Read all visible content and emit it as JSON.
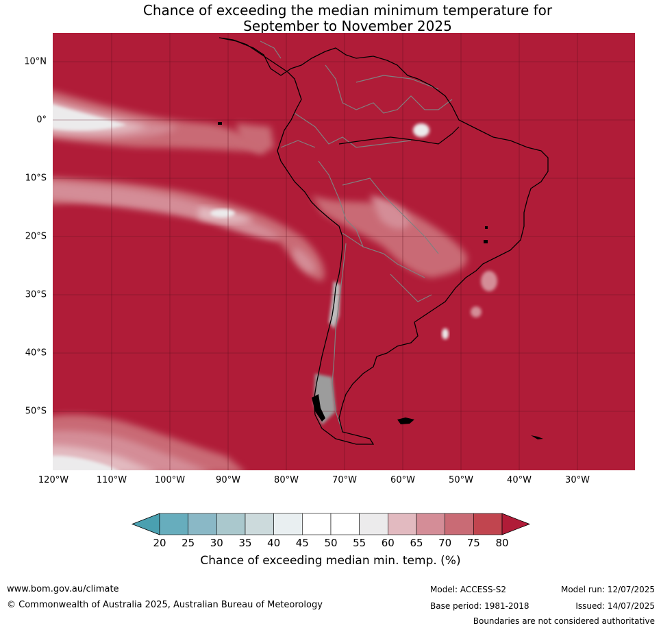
{
  "title": {
    "line1": "Chance of exceeding the median minimum temperature for",
    "line2": "September to November 2025"
  },
  "map": {
    "region": "South America",
    "base_color": "#b01c38",
    "land_outline_color": "#000000",
    "border_color": "#808080",
    "latitude_labels": [
      "10°N",
      "0°",
      "10°S",
      "20°S",
      "30°S",
      "40°S",
      "50°S"
    ],
    "longitude_labels": [
      "120°W",
      "110°W",
      "100°W",
      "90°W",
      "80°W",
      "70°W",
      "60°W",
      "50°W",
      "40°W",
      "30°W"
    ]
  },
  "colorbar": {
    "ticks": [
      "20",
      "25",
      "30",
      "35",
      "40",
      "45",
      "50",
      "55",
      "60",
      "65",
      "70",
      "75",
      "80"
    ],
    "colors": [
      "#67adbd",
      "#8ab8c6",
      "#aac8cd",
      "#ccdadc",
      "#e9eff1",
      "#ffffff",
      "#ffffff",
      "#ecebec",
      "#e2bac0",
      "#d48d97",
      "#c96b75",
      "#c1454f"
    ],
    "under_color": "#4aa0b0",
    "over_color": "#b01c38",
    "label": "Chance of exceeding median min. temp. (%)"
  },
  "footer": {
    "website": "www.bom.gov.au/climate",
    "copyright": "© Commonwealth of Australia 2025, Australian Bureau of Meteorology",
    "model": "Model: ACCESS-S2",
    "base_period": "Base period: 1981-2018",
    "model_run": "Model run: 12/07/2025",
    "issued": "Issued: 14/07/2025",
    "disclaimer": "Boundaries are not considered authoritative"
  }
}
